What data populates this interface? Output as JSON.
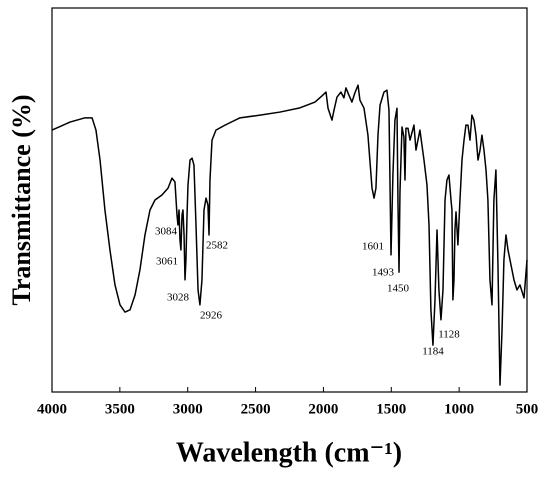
{
  "chart_data": {
    "type": "line",
    "x_label": "Wavelength (cm⁻¹)",
    "y_label": "Transmittance (%)",
    "xlim": [
      4000,
      500
    ],
    "ylim": [
      0,
      100
    ],
    "xticks": [
      4000,
      3500,
      3000,
      2500,
      2000,
      1500,
      1000,
      500
    ],
    "color": "#000000",
    "x": [
      4000,
      3867,
      3757,
      3705,
      3676,
      3646,
      3610,
      3573,
      3536,
      3499,
      3462,
      3425,
      3388,
      3352,
      3315,
      3278,
      3241,
      3190,
      3145,
      3116,
      3094,
      3079,
      3072,
      3064,
      3057,
      3050,
      3042,
      3035,
      3027,
      3020,
      3013,
      3005,
      2998,
      2983,
      2968,
      2954,
      2939,
      2924,
      2910,
      2895,
      2880,
      2865,
      2851,
      2843,
      2836,
      2821,
      2792,
      2725,
      2615,
      2467,
      2320,
      2173,
      2062,
      2011,
      1981,
      1966,
      1937,
      1922,
      1900,
      1871,
      1849,
      1834,
      1812,
      1790,
      1768,
      1745,
      1731,
      1701,
      1672,
      1642,
      1627,
      1613,
      1598,
      1583,
      1554,
      1532,
      1517,
      1502,
      1488,
      1473,
      1458,
      1451,
      1443,
      1436,
      1421,
      1407,
      1399,
      1392,
      1377,
      1362,
      1333,
      1318,
      1289,
      1259,
      1237,
      1222,
      1208,
      1193,
      1178,
      1163,
      1149,
      1134,
      1119,
      1104,
      1090,
      1075,
      1060,
      1053,
      1046,
      1038,
      1031,
      1023,
      1009,
      994,
      979,
      964,
      950,
      935,
      920,
      906,
      891,
      876,
      861,
      846,
      832,
      817,
      802,
      788,
      773,
      758,
      744,
      729,
      714,
      699,
      684,
      670,
      655,
      640,
      618,
      596,
      574,
      552,
      522,
      500
    ],
    "values": [
      68.2,
      70.3,
      71.4,
      71.4,
      68.2,
      60.4,
      47.4,
      37.0,
      27.9,
      22.7,
      20.8,
      21.4,
      25.3,
      31.8,
      40.9,
      47.4,
      50.0,
      51.3,
      53.1,
      55.7,
      54.7,
      46.1,
      43.5,
      47.4,
      39.6,
      37.0,
      46.1,
      47.4,
      40.9,
      29.2,
      34.4,
      46.1,
      53.9,
      60.4,
      60.9,
      59.1,
      43.5,
      26.6,
      22.7,
      29.2,
      47.4,
      50.5,
      48.7,
      40.9,
      55.2,
      65.6,
      68.2,
      69.5,
      71.4,
      72.1,
      72.9,
      74.0,
      75.5,
      77.1,
      78.1,
      73.9,
      70.8,
      73.4,
      76.8,
      78.1,
      76.6,
      79.2,
      77.3,
      75.5,
      77.9,
      79.9,
      76.0,
      73.9,
      66.9,
      53.1,
      50.5,
      53.1,
      66.9,
      74.7,
      78.1,
      78.6,
      73.4,
      35.7,
      56.5,
      70.8,
      73.9,
      49.9,
      31.2,
      52.1,
      69.0,
      66.4,
      55.2,
      68.7,
      68.7,
      65.6,
      69.5,
      63.0,
      68.2,
      60.4,
      53.9,
      43.5,
      21.4,
      12.2,
      24.0,
      42.2,
      26.6,
      18.8,
      26.6,
      50.0,
      55.2,
      56.5,
      50.0,
      47.4,
      24.0,
      29.2,
      42.2,
      46.9,
      38.3,
      50.0,
      60.4,
      65.6,
      69.5,
      69.5,
      65.6,
      72.1,
      70.8,
      66.9,
      60.4,
      63.0,
      66.9,
      63.0,
      57.8,
      50.0,
      29.2,
      22.7,
      50.0,
      57.8,
      33.1,
      1.8,
      16.1,
      34.4,
      40.9,
      37.0,
      33.1,
      29.2,
      26.6,
      27.9,
      24.5,
      34.4
    ],
    "annotations": [
      "3084",
      "3061",
      "3028",
      "2926",
      "2582",
      "1601",
      "1493",
      "1450",
      "1128",
      "1184"
    ]
  }
}
